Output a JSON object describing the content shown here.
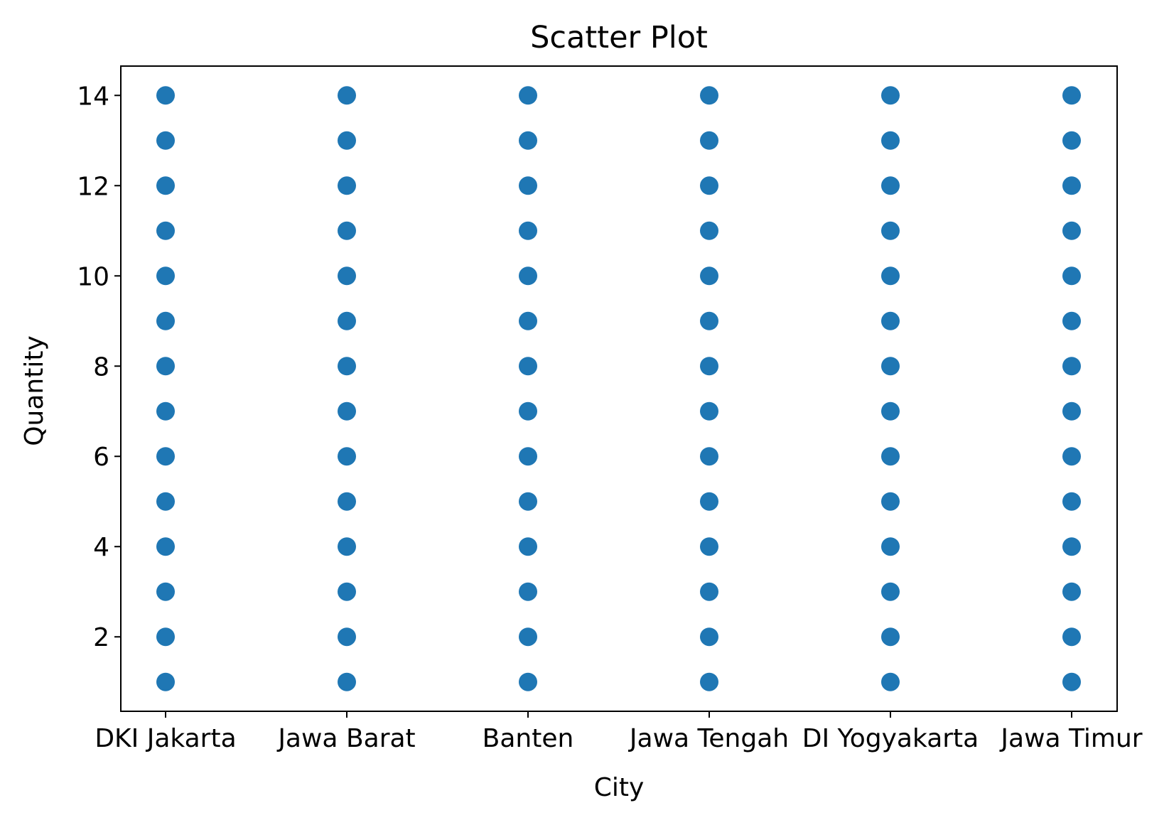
{
  "chart_data": {
    "type": "scatter",
    "title": "Scatter Plot",
    "xlabel": "City",
    "ylabel": "Quantity",
    "categories": [
      "DKI Jakarta",
      "Jawa Barat",
      "Banten",
      "Jawa Tengah",
      "DI Yogyakarta",
      "Jawa Timur"
    ],
    "yticks": [
      2,
      4,
      6,
      8,
      10,
      12,
      14
    ],
    "ylim": [
      0.35,
      14.65
    ],
    "grid": false,
    "legend": "none",
    "marker_color": "#1f77b4",
    "series": [
      {
        "points": [
          {
            "x": "DKI Jakarta",
            "y": 1
          },
          {
            "x": "DKI Jakarta",
            "y": 2
          },
          {
            "x": "DKI Jakarta",
            "y": 3
          },
          {
            "x": "DKI Jakarta",
            "y": 4
          },
          {
            "x": "DKI Jakarta",
            "y": 5
          },
          {
            "x": "DKI Jakarta",
            "y": 6
          },
          {
            "x": "DKI Jakarta",
            "y": 7
          },
          {
            "x": "DKI Jakarta",
            "y": 8
          },
          {
            "x": "DKI Jakarta",
            "y": 9
          },
          {
            "x": "DKI Jakarta",
            "y": 10
          },
          {
            "x": "DKI Jakarta",
            "y": 11
          },
          {
            "x": "DKI Jakarta",
            "y": 12
          },
          {
            "x": "DKI Jakarta",
            "y": 13
          },
          {
            "x": "DKI Jakarta",
            "y": 14
          },
          {
            "x": "Jawa Barat",
            "y": 1
          },
          {
            "x": "Jawa Barat",
            "y": 2
          },
          {
            "x": "Jawa Barat",
            "y": 3
          },
          {
            "x": "Jawa Barat",
            "y": 4
          },
          {
            "x": "Jawa Barat",
            "y": 5
          },
          {
            "x": "Jawa Barat",
            "y": 6
          },
          {
            "x": "Jawa Barat",
            "y": 7
          },
          {
            "x": "Jawa Barat",
            "y": 8
          },
          {
            "x": "Jawa Barat",
            "y": 9
          },
          {
            "x": "Jawa Barat",
            "y": 10
          },
          {
            "x": "Jawa Barat",
            "y": 11
          },
          {
            "x": "Jawa Barat",
            "y": 12
          },
          {
            "x": "Jawa Barat",
            "y": 13
          },
          {
            "x": "Jawa Barat",
            "y": 14
          },
          {
            "x": "Banten",
            "y": 1
          },
          {
            "x": "Banten",
            "y": 2
          },
          {
            "x": "Banten",
            "y": 3
          },
          {
            "x": "Banten",
            "y": 4
          },
          {
            "x": "Banten",
            "y": 5
          },
          {
            "x": "Banten",
            "y": 6
          },
          {
            "x": "Banten",
            "y": 7
          },
          {
            "x": "Banten",
            "y": 8
          },
          {
            "x": "Banten",
            "y": 9
          },
          {
            "x": "Banten",
            "y": 10
          },
          {
            "x": "Banten",
            "y": 11
          },
          {
            "x": "Banten",
            "y": 12
          },
          {
            "x": "Banten",
            "y": 13
          },
          {
            "x": "Banten",
            "y": 14
          },
          {
            "x": "Jawa Tengah",
            "y": 1
          },
          {
            "x": "Jawa Tengah",
            "y": 2
          },
          {
            "x": "Jawa Tengah",
            "y": 3
          },
          {
            "x": "Jawa Tengah",
            "y": 4
          },
          {
            "x": "Jawa Tengah",
            "y": 5
          },
          {
            "x": "Jawa Tengah",
            "y": 6
          },
          {
            "x": "Jawa Tengah",
            "y": 7
          },
          {
            "x": "Jawa Tengah",
            "y": 8
          },
          {
            "x": "Jawa Tengah",
            "y": 9
          },
          {
            "x": "Jawa Tengah",
            "y": 10
          },
          {
            "x": "Jawa Tengah",
            "y": 11
          },
          {
            "x": "Jawa Tengah",
            "y": 12
          },
          {
            "x": "Jawa Tengah",
            "y": 13
          },
          {
            "x": "Jawa Tengah",
            "y": 14
          },
          {
            "x": "DI Yogyakarta",
            "y": 1
          },
          {
            "x": "DI Yogyakarta",
            "y": 2
          },
          {
            "x": "DI Yogyakarta",
            "y": 3
          },
          {
            "x": "DI Yogyakarta",
            "y": 4
          },
          {
            "x": "DI Yogyakarta",
            "y": 5
          },
          {
            "x": "DI Yogyakarta",
            "y": 6
          },
          {
            "x": "DI Yogyakarta",
            "y": 7
          },
          {
            "x": "DI Yogyakarta",
            "y": 8
          },
          {
            "x": "DI Yogyakarta",
            "y": 9
          },
          {
            "x": "DI Yogyakarta",
            "y": 10
          },
          {
            "x": "DI Yogyakarta",
            "y": 11
          },
          {
            "x": "DI Yogyakarta",
            "y": 12
          },
          {
            "x": "DI Yogyakarta",
            "y": 13
          },
          {
            "x": "DI Yogyakarta",
            "y": 14
          },
          {
            "x": "Jawa Timur",
            "y": 1
          },
          {
            "x": "Jawa Timur",
            "y": 2
          },
          {
            "x": "Jawa Timur",
            "y": 3
          },
          {
            "x": "Jawa Timur",
            "y": 4
          },
          {
            "x": "Jawa Timur",
            "y": 5
          },
          {
            "x": "Jawa Timur",
            "y": 6
          },
          {
            "x": "Jawa Timur",
            "y": 7
          },
          {
            "x": "Jawa Timur",
            "y": 8
          },
          {
            "x": "Jawa Timur",
            "y": 9
          },
          {
            "x": "Jawa Timur",
            "y": 10
          },
          {
            "x": "Jawa Timur",
            "y": 11
          },
          {
            "x": "Jawa Timur",
            "y": 12
          },
          {
            "x": "Jawa Timur",
            "y": 13
          },
          {
            "x": "Jawa Timur",
            "y": 14
          }
        ]
      }
    ]
  }
}
